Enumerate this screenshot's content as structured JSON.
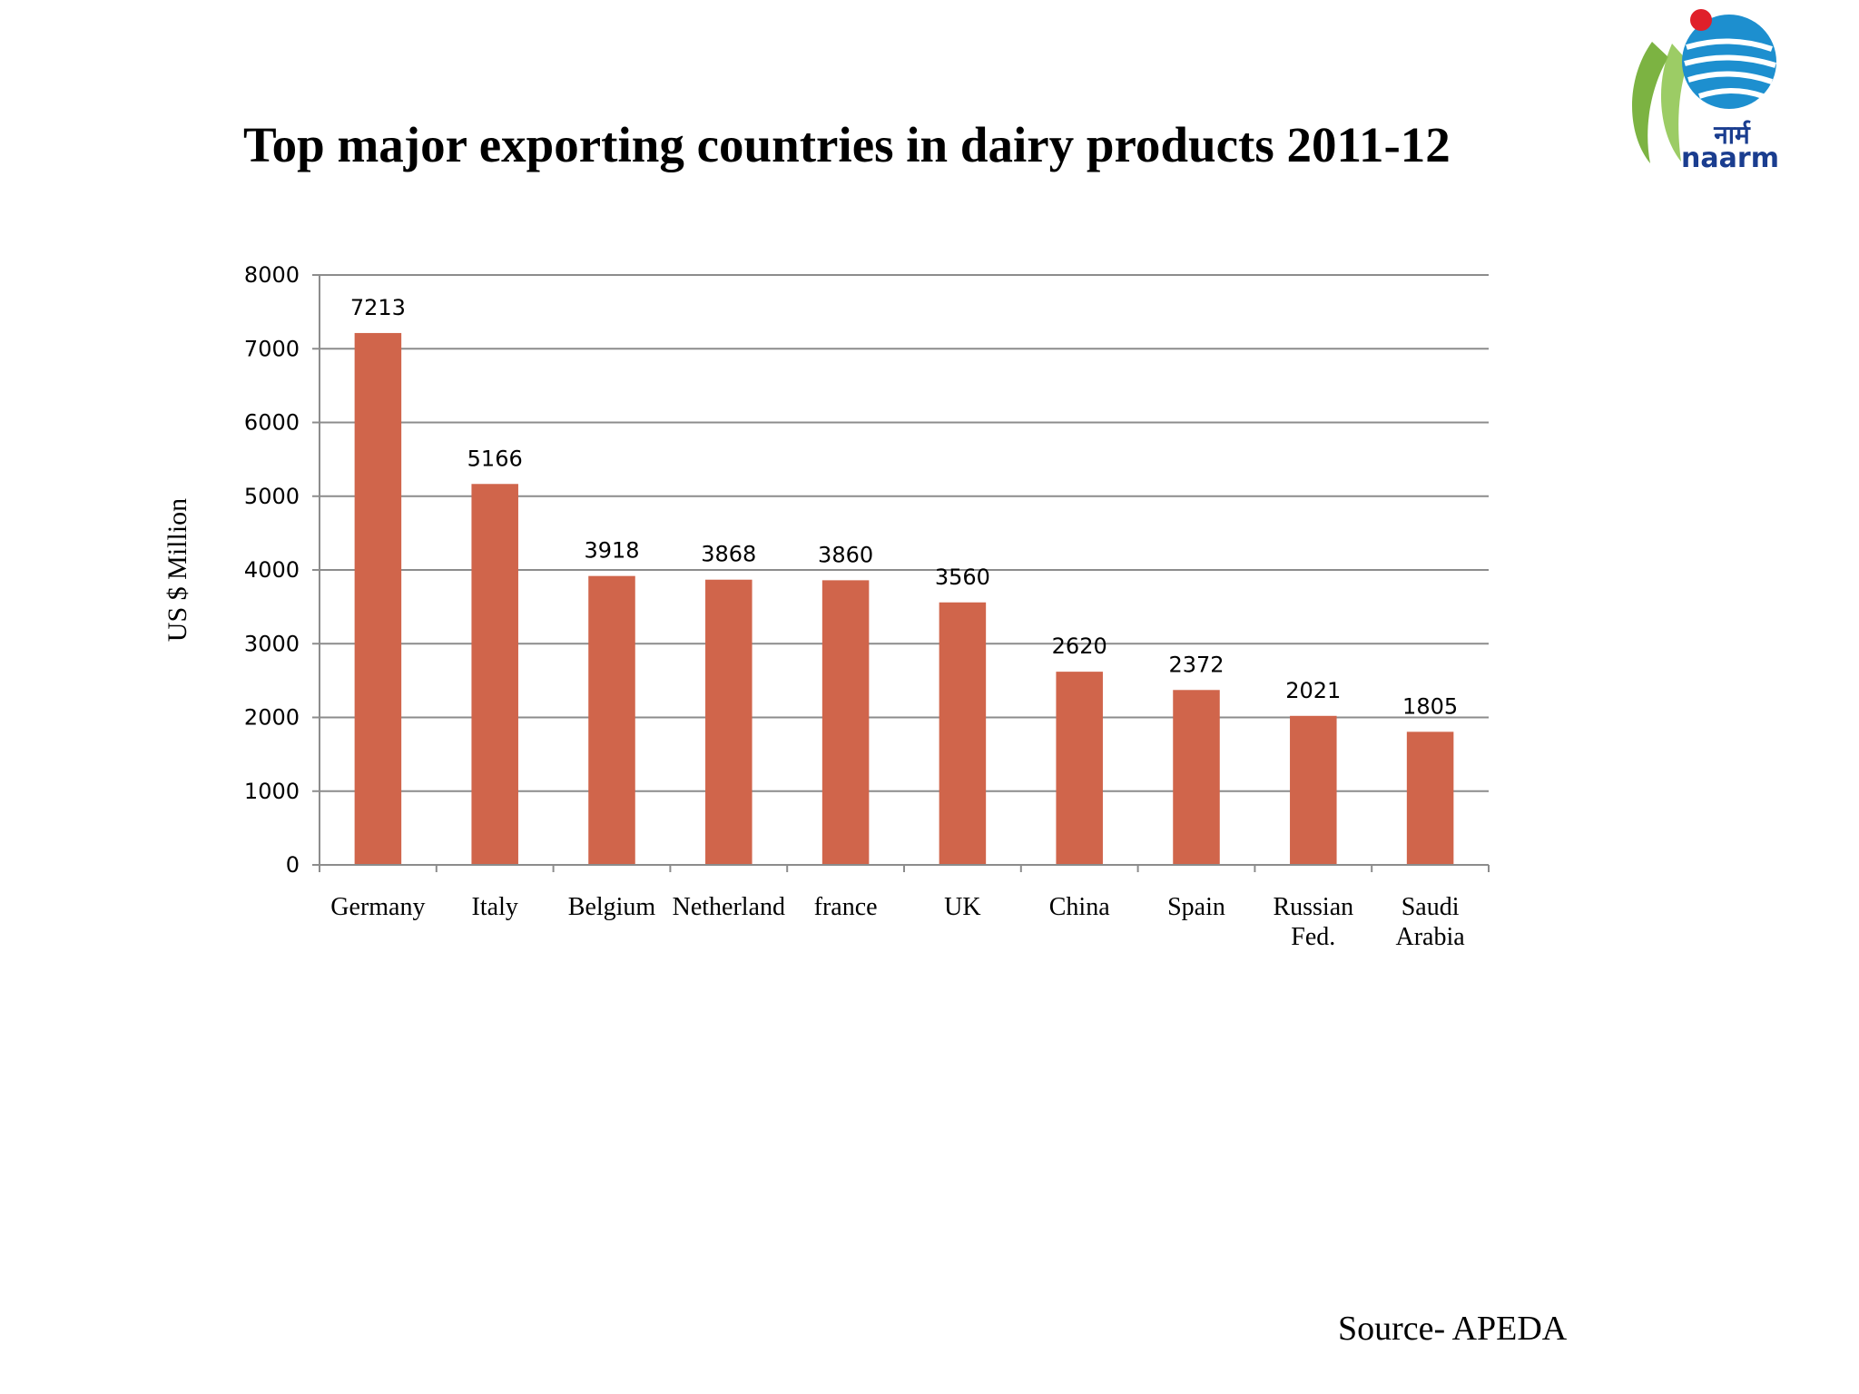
{
  "slide": {
    "title": "Top major exporting countries in dairy products 2011-12",
    "source": "Source- APEDA",
    "logo_text": "नार्म",
    "logo_brand": "naarm"
  },
  "colors": {
    "bar": "#D0654B",
    "grid": "#8c8c8c",
    "logo_blue": "#1d8fcf",
    "logo_green": "#7cb342",
    "logo_red": "#e0202a",
    "logo_text": "#1a3d8f"
  },
  "chart_data": {
    "type": "bar",
    "title": "Top major exporting countries in dairy products 2011-12",
    "xlabel": "",
    "ylabel": "US $ Million",
    "ylim": [
      0,
      8000
    ],
    "yticks": [
      0,
      1000,
      2000,
      3000,
      4000,
      5000,
      6000,
      7000,
      8000
    ],
    "grid": true,
    "legend": "none",
    "categories": [
      [
        "Germany"
      ],
      [
        "Italy"
      ],
      [
        "Belgium"
      ],
      [
        "Netherland"
      ],
      [
        "france"
      ],
      [
        "UK"
      ],
      [
        "China"
      ],
      [
        "Spain"
      ],
      [
        "Russian",
        "Fed."
      ],
      [
        "Saudi",
        "Arabia"
      ]
    ],
    "values": [
      7213,
      5166,
      3918,
      3868,
      3860,
      3560,
      2620,
      2372,
      2021,
      1805
    ]
  }
}
